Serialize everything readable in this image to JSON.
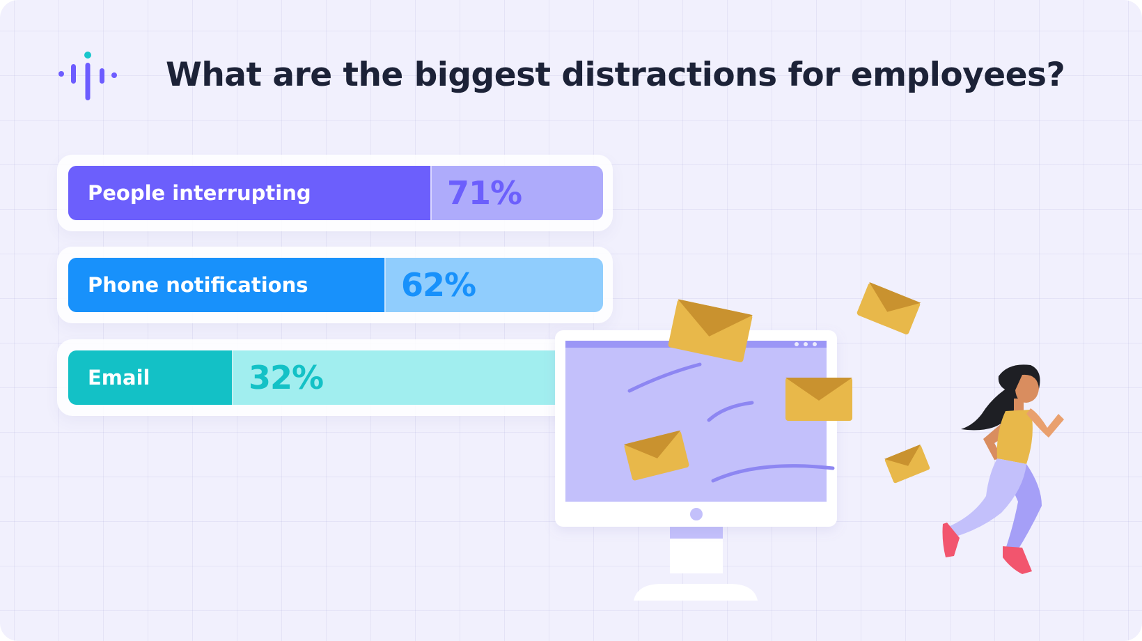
{
  "title": "What are the biggest distractions for employees?",
  "logo": {
    "icon": "audio-bars-logo-icon"
  },
  "colors": {
    "title_text": "#1c2237",
    "background": "#f1f0fd",
    "logo_purple": "#6d5cff",
    "logo_teal": "#18c6cc",
    "envelope": "#e8b84a",
    "screen": "#c3c0fb"
  },
  "chart_data": {
    "type": "bar",
    "orientation": "horizontal",
    "title": "What are the biggest distractions for employees?",
    "xlim": [
      0,
      100
    ],
    "unit": "%",
    "categories": [
      "People interrupting",
      "Phone notifications",
      "Email"
    ],
    "values": [
      71,
      62,
      32
    ],
    "value_labels": [
      "71%",
      "62%",
      "32%"
    ],
    "colors": [
      {
        "fill": "#6c5ffc",
        "track": "#aeabfb",
        "text": "#6c5ffc"
      },
      {
        "fill": "#1891fb",
        "track": "#90cdfd",
        "text": "#1891fb"
      },
      {
        "fill": "#13c1c6",
        "track": "#a1eeef",
        "text": "#13c1c6"
      }
    ]
  }
}
